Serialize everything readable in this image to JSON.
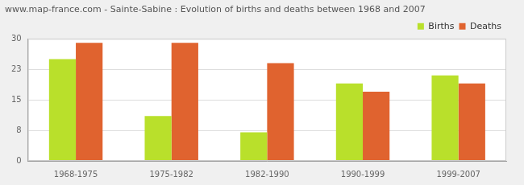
{
  "chart_data": {
    "type": "bar",
    "title": "www.map-france.com - Sainte-Sabine : Evolution of births and deaths between 1968 and 2007",
    "categories": [
      "1968-1975",
      "1975-1982",
      "1982-1990",
      "1990-1999",
      "1999-2007"
    ],
    "series": [
      {
        "name": "Births",
        "color": "#b9e02b",
        "values": [
          25,
          11,
          7,
          19,
          21
        ]
      },
      {
        "name": "Deaths",
        "color": "#e0632f",
        "values": [
          29,
          29,
          24,
          17,
          19
        ]
      }
    ],
    "ylim": [
      0,
      30
    ],
    "yticks": [
      0,
      {
        "value": 7.5,
        "label": "8"
      },
      15,
      {
        "value": 22.5,
        "label": "23"
      },
      30
    ],
    "grid": true,
    "legend": "upper right"
  }
}
